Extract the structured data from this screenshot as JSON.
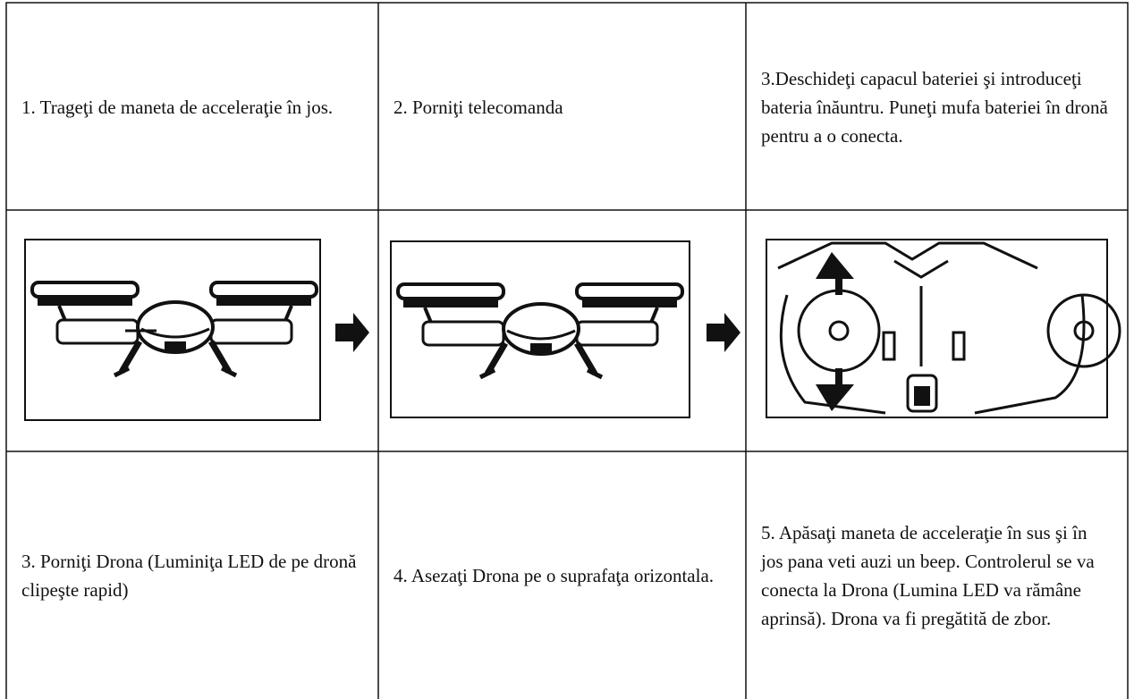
{
  "table": {
    "rows": [
      [
        "1. Trageţi de maneta de acceleraţie în jos.",
        "2. Porniţi telecomanda",
        "3.Deschideţi capacul bateriei şi introduceţi bateria înăuntru. Puneţi mufa bateriei în dronă pentru a o conecta."
      ],
      [
        "3. Porniţi Drona (Luminiţa LED de pe dronă clipeşte rapid)",
        "4. Asezaţi Drona pe o suprafaţa orizontala.",
        "5. Apăsaţi maneta de acceleraţie în sus şi în jos pana veti auzi un beep. Controlerul se va conecta la Drona (Lumina LED va rămâne aprinsă). Drona va fi pregătită de zbor."
      ]
    ]
  }
}
